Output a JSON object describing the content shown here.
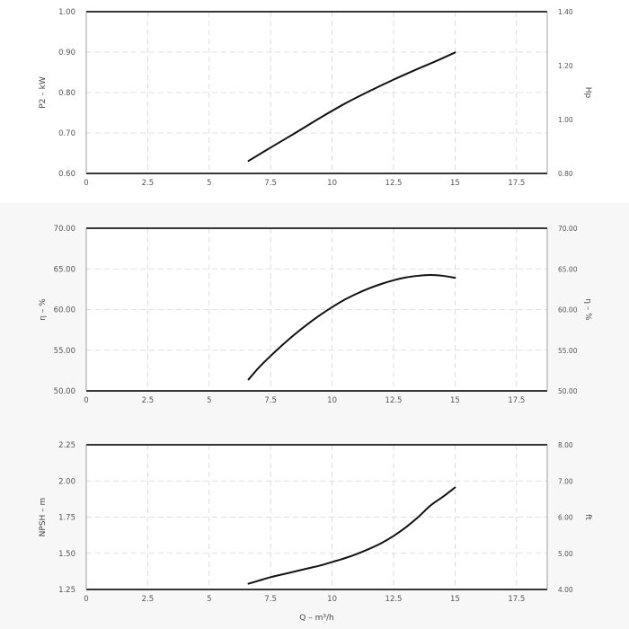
{
  "chart_data": [
    {
      "type": "line",
      "ylabel": "P2 – kW",
      "y2label": "Hp",
      "xlim": [
        0,
        18.75
      ],
      "ylim": [
        0.6,
        1.0
      ],
      "y2lim": [
        0.8,
        1.4
      ],
      "x_ticks": [
        "0",
        "2.5",
        "5",
        "7.5",
        "10",
        "12.5",
        "15",
        "17.5"
      ],
      "y_ticks": [
        "0.60",
        "0.70",
        "0.80",
        "0.90",
        "1.00"
      ],
      "y2_ticks": [
        "0.80",
        "1.00",
        "1.20",
        "1.40"
      ],
      "grid": true,
      "series": [
        {
          "x": [
            6.6,
            7.5,
            8.5,
            9.5,
            10.5,
            11.5,
            12.5,
            13.5,
            14.2,
            15.0
          ],
          "y": [
            0.631,
            0.664,
            0.7,
            0.737,
            0.772,
            0.803,
            0.832,
            0.859,
            0.877,
            0.899
          ]
        }
      ]
    },
    {
      "type": "line",
      "ylabel": "η – %",
      "y2label": "η – %",
      "xlim": [
        0,
        18.75
      ],
      "ylim": [
        50,
        70
      ],
      "y2lim": [
        50,
        70
      ],
      "x_ticks": [
        "0",
        "2.5",
        "5",
        "7.5",
        "10",
        "12.5",
        "15",
        "17.5"
      ],
      "y_ticks": [
        "50.00",
        "55.00",
        "60.00",
        "65.00",
        "70.00"
      ],
      "y2_ticks": [
        "50.00",
        "55.00",
        "60.00",
        "65.00",
        "70.00"
      ],
      "grid": true,
      "series": [
        {
          "x": [
            6.6,
            7.0,
            7.5,
            8.0,
            8.5,
            9.0,
            9.5,
            10.0,
            10.5,
            11.0,
            11.5,
            12.0,
            12.5,
            13.0,
            13.5,
            14.0,
            14.5,
            15.0
          ],
          "y": [
            51.4,
            52.8,
            54.3,
            55.7,
            57.0,
            58.2,
            59.3,
            60.3,
            61.2,
            61.95,
            62.6,
            63.15,
            63.6,
            63.95,
            64.15,
            64.25,
            64.15,
            63.9
          ]
        }
      ]
    },
    {
      "type": "line",
      "ylabel": "NPSH – m",
      "y2label": "ft",
      "xlabel": "Q – m³/h",
      "xlim": [
        0,
        18.75
      ],
      "ylim": [
        1.25,
        2.25
      ],
      "y2lim": [
        4.0,
        8.0
      ],
      "x_ticks": [
        "0",
        "2.5",
        "5",
        "7.5",
        "10",
        "12.5",
        "15",
        "17.5"
      ],
      "y_ticks": [
        "1.25",
        "1.50",
        "1.75",
        "2.00",
        "2.25"
      ],
      "y2_ticks": [
        "4.00",
        "5.00",
        "6.00",
        "7.00",
        "8.00"
      ],
      "grid": true,
      "series": [
        {
          "x": [
            6.6,
            7.0,
            7.5,
            8.0,
            8.5,
            9.0,
            9.5,
            10.0,
            10.5,
            11.0,
            11.5,
            12.0,
            12.5,
            13.0,
            13.5,
            14.0,
            14.5,
            15.0
          ],
          "y": [
            1.29,
            1.31,
            1.335,
            1.355,
            1.375,
            1.395,
            1.415,
            1.44,
            1.465,
            1.495,
            1.53,
            1.57,
            1.62,
            1.68,
            1.75,
            1.83,
            1.89,
            1.955
          ]
        }
      ]
    }
  ]
}
